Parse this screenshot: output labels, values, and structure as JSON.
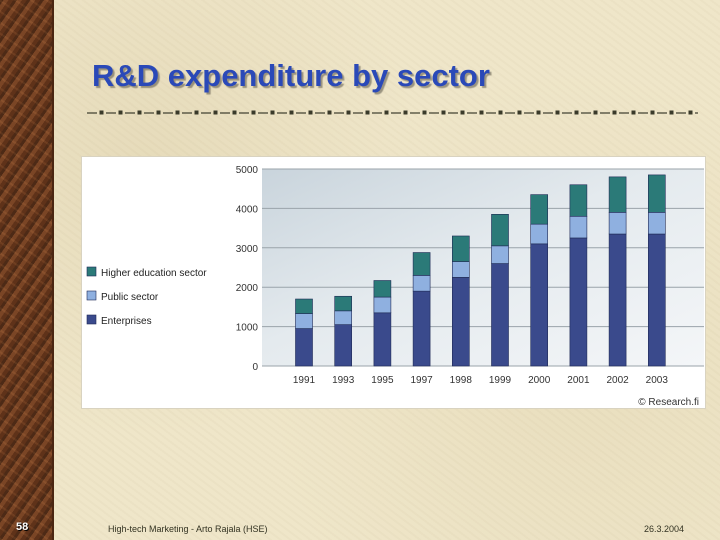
{
  "slide": {
    "title": "R&D expenditure by sector",
    "slide_number": "58",
    "footer_left": "High-tech Marketing - Arto Rajala (HSE)",
    "footer_right": "26.3.2004"
  },
  "chart_data": {
    "type": "bar",
    "stacked": true,
    "title": "",
    "xlabel": "",
    "ylabel": "",
    "categories": [
      "1991",
      "1993",
      "1995",
      "1997",
      "1998",
      "1999",
      "2000",
      "2001",
      "2002",
      "2003"
    ],
    "series": [
      {
        "name": "Enterprises",
        "color": "#3a4a8c",
        "values": [
          950,
          1050,
          1350,
          1900,
          2250,
          2600,
          3100,
          3250,
          3350,
          3350
        ]
      },
      {
        "name": "Public sector",
        "color": "#8fb0e0",
        "values": [
          380,
          350,
          400,
          400,
          400,
          450,
          500,
          550,
          550,
          550
        ]
      },
      {
        "name": "Higher education sector",
        "color": "#2b7a78",
        "values": [
          370,
          370,
          420,
          580,
          650,
          800,
          750,
          800,
          900,
          950
        ]
      }
    ],
    "yticks": [
      0,
      1000,
      2000,
      3000,
      4000,
      5000
    ],
    "ylim": [
      0,
      5000
    ],
    "grid": true,
    "legend_position": "left",
    "credit": "© Research.fi"
  }
}
